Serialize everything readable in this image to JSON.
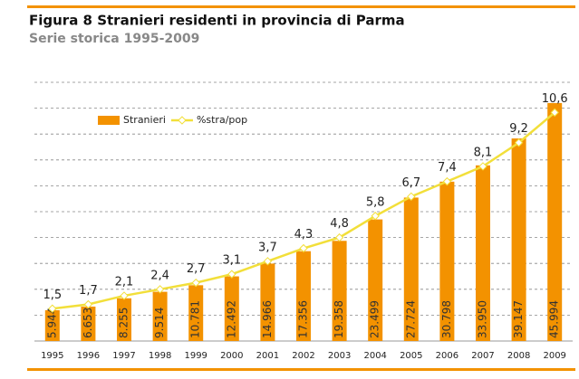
{
  "chart_data": {
    "type": "bar_line",
    "title": "Figura 8 Stranieri residenti in provincia di Parma",
    "subtitle": "Serie storica 1995-2009",
    "categories": [
      "1995",
      "1996",
      "1997",
      "1998",
      "1999",
      "2000",
      "2001",
      "2002",
      "2003",
      "2004",
      "2005",
      "2006",
      "2007",
      "2008",
      "2009"
    ],
    "series": [
      {
        "name": "Stranieri",
        "color": "#f39200",
        "type": "bar",
        "values": [
          5944,
          6653,
          8255,
          9514,
          10781,
          12492,
          14966,
          17356,
          19358,
          23499,
          27724,
          30798,
          33950,
          39147,
          45994
        ],
        "value_labels": [
          "5.944",
          "6.653",
          "8.255",
          "9.514",
          "10.781",
          "12.492",
          "14.966",
          "17.356",
          "19.358",
          "23.499",
          "27.724",
          "30.798",
          "33.950",
          "39.147",
          "45.994"
        ]
      },
      {
        "name": "%stra/pop",
        "color": "#f2df3a",
        "type": "line",
        "axis": "y2",
        "values": [
          1.5,
          1.7,
          2.1,
          2.4,
          2.7,
          3.1,
          3.7,
          4.3,
          4.8,
          5.8,
          6.7,
          7.4,
          8.1,
          9.2,
          10.6
        ],
        "value_labels": [
          "1,5",
          "1,7",
          "2,1",
          "2,4",
          "2,7",
          "3,1",
          "3,7",
          "4,3",
          "4,8",
          "5,8",
          "6,7",
          "7,4",
          "8,1",
          "9,2",
          "10,6"
        ]
      }
    ],
    "ylim": [
      0,
      50000
    ],
    "yticks": [
      0,
      5000,
      10000,
      15000,
      20000,
      25000,
      30000,
      35000,
      40000,
      45000,
      50000
    ],
    "y2lim": [
      0,
      12
    ],
    "grid": true,
    "legend": "top-left"
  }
}
